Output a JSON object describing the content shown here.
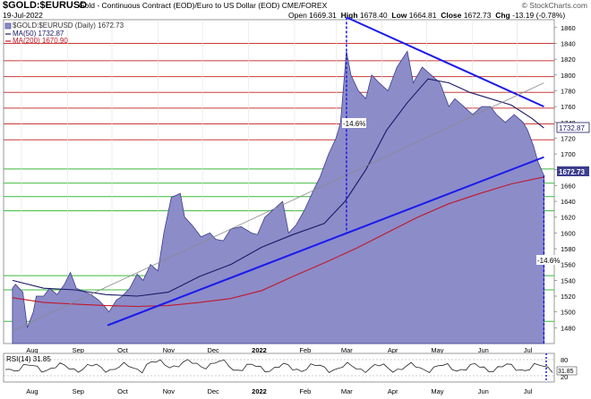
{
  "header": {
    "symbol": "$GOLD:$EURUSD",
    "description": "Gold - Continuous Contract (EOD)/Euro to US Dollar (EOD)  CME/FOREX",
    "watermark": "© StockCharts.com",
    "date": "19-Jul-2022",
    "open_label": "Open",
    "open": "1669.31",
    "high_label": "High",
    "high": "1678.40",
    "low_label": "Low",
    "low": "1664.81",
    "close_label": "Close",
    "close": "1672.73",
    "chg_label": "Chg",
    "chg": "-13.19 (-0.78%)"
  },
  "legend": {
    "price": "$GOLD:$EURUSD (Daily) 1672.73",
    "ma50": "MA(50) 1732.87",
    "ma200": "MA(200) 1670.90"
  },
  "rsi": {
    "label": "RSI(14) 31.85",
    "ticks": [
      "80",
      "20"
    ],
    "value_tag": "31.85"
  },
  "annotations": {
    "left_pct": "-14.6%",
    "right_pct": "-14.6%"
  },
  "price_tags": {
    "ma50": "1732.87",
    "close": "1672.73"
  },
  "colors": {
    "area_fill": "#8c8cc9",
    "area_line": "#3d3d8f",
    "ma50": "#1a1a66",
    "ma200": "#c0182a",
    "trend": "#1a1aee",
    "grid_red": "#c83b3b",
    "grid_green": "#3cb83c"
  },
  "chart_data": {
    "type": "area",
    "ylim": [
      1460,
      1870
    ],
    "y_ticks": [
      1480,
      1500,
      1520,
      1540,
      1560,
      1580,
      1600,
      1620,
      1640,
      1660,
      1680,
      1700,
      1720,
      1740,
      1760,
      1780,
      1800,
      1820,
      1840,
      1860
    ],
    "x_labels": [
      "Aug",
      "Sep",
      "Oct",
      "Nov",
      "Dec",
      "2022",
      "Feb",
      "Mar",
      "Apr",
      "May",
      "Jun",
      "Jul"
    ],
    "series": [
      {
        "name": "$GOLD:$EURUSD (Daily)",
        "x": [
          "2021-07-26",
          "2021-07-28",
          "2021-08-02",
          "2021-08-05",
          "2021-08-09",
          "2021-08-11",
          "2021-08-16",
          "2021-08-20",
          "2021-08-25",
          "2021-08-30",
          "2021-09-03",
          "2021-09-07",
          "2021-09-13",
          "2021-09-17",
          "2021-09-22",
          "2021-09-27",
          "2021-09-29",
          "2021-10-04",
          "2021-10-08",
          "2021-10-13",
          "2021-10-18",
          "2021-10-22",
          "2021-10-27",
          "2021-11-01",
          "2021-11-05",
          "2021-11-10",
          "2021-11-16",
          "2021-11-19",
          "2021-11-24",
          "2021-11-30",
          "2021-12-06",
          "2021-12-10",
          "2021-12-15",
          "2021-12-20",
          "2021-12-27",
          "2022-01-03",
          "2022-01-07",
          "2022-01-12",
          "2022-01-18",
          "2022-01-24",
          "2022-01-28",
          "2022-02-02",
          "2022-02-08",
          "2022-02-14",
          "2022-02-18",
          "2022-02-24",
          "2022-03-01",
          "2022-03-04",
          "2022-03-08",
          "2022-03-11",
          "2022-03-16",
          "2022-03-21",
          "2022-03-25",
          "2022-03-30",
          "2022-04-05",
          "2022-04-11",
          "2022-04-18",
          "2022-04-22",
          "2022-04-28",
          "2022-05-04",
          "2022-05-10",
          "2022-05-16",
          "2022-05-20",
          "2022-05-26",
          "2022-06-01",
          "2022-06-07",
          "2022-06-13",
          "2022-06-17",
          "2022-06-23",
          "2022-06-29",
          "2022-07-05",
          "2022-07-08",
          "2022-07-12",
          "2022-07-15",
          "2022-07-19"
        ],
        "values": [
          1530,
          1535,
          1525,
          1480,
          1500,
          1520,
          1520,
          1530,
          1522,
          1535,
          1550,
          1530,
          1525,
          1522,
          1515,
          1505,
          1500,
          1515,
          1520,
          1530,
          1548,
          1540,
          1560,
          1552,
          1600,
          1645,
          1650,
          1620,
          1610,
          1595,
          1600,
          1592,
          1590,
          1605,
          1608,
          1600,
          1598,
          1620,
          1630,
          1640,
          1600,
          1610,
          1630,
          1655,
          1670,
          1700,
          1720,
          1740,
          1830,
          1800,
          1780,
          1770,
          1800,
          1790,
          1780,
          1810,
          1830,
          1790,
          1810,
          1800,
          1790,
          1760,
          1770,
          1760,
          1750,
          1760,
          1760,
          1750,
          1740,
          1750,
          1740,
          1730,
          1710,
          1690,
          1672.73
        ]
      },
      {
        "name": "MA(50)",
        "x": [
          "2021-07-26",
          "2021-08-16",
          "2021-09-06",
          "2021-09-27",
          "2021-10-18",
          "2021-11-08",
          "2021-11-29",
          "2021-12-20",
          "2022-01-10",
          "2022-01-31",
          "2022-02-21",
          "2022-03-07",
          "2022-03-21",
          "2022-04-04",
          "2022-04-18",
          "2022-05-02",
          "2022-05-16",
          "2022-05-30",
          "2022-06-13",
          "2022-06-27",
          "2022-07-11",
          "2022-07-19"
        ],
        "values": [
          1540,
          1530,
          1528,
          1522,
          1520,
          1525,
          1545,
          1560,
          1582,
          1598,
          1612,
          1640,
          1680,
          1730,
          1765,
          1795,
          1790,
          1778,
          1770,
          1762,
          1745,
          1732.87
        ]
      },
      {
        "name": "MA(200)",
        "x": [
          "2021-07-26",
          "2021-08-16",
          "2021-09-06",
          "2021-09-27",
          "2021-10-18",
          "2021-11-08",
          "2021-11-29",
          "2021-12-20",
          "2022-01-10",
          "2022-01-31",
          "2022-02-21",
          "2022-03-14",
          "2022-04-04",
          "2022-04-25",
          "2022-05-16",
          "2022-06-06",
          "2022-06-27",
          "2022-07-19"
        ],
        "values": [
          1518,
          1512,
          1510,
          1508,
          1507,
          1508,
          1512,
          1517,
          1527,
          1545,
          1562,
          1580,
          1600,
          1620,
          1637,
          1650,
          1662,
          1670.9
        ]
      }
    ],
    "trendlines": [
      {
        "from": [
          "2021-09-28",
          1483
        ],
        "to": [
          "2022-07-19",
          1696
        ]
      },
      {
        "from": [
          "2022-03-08",
          1873
        ],
        "to": [
          "2022-07-19",
          1760
        ]
      },
      {
        "from": [
          "2021-07-26",
          1476
        ],
        "to": [
          "2022-07-19",
          1790
        ]
      }
    ],
    "horizontal_lines": [
      {
        "value": 1840,
        "color": "red"
      },
      {
        "value": 1818,
        "color": "red"
      },
      {
        "value": 1798,
        "color": "red"
      },
      {
        "value": 1778,
        "color": "red"
      },
      {
        "value": 1758,
        "color": "red"
      },
      {
        "value": 1738,
        "color": "red"
      },
      {
        "value": 1718,
        "color": "red"
      },
      {
        "value": 1681,
        "color": "green"
      },
      {
        "value": 1663,
        "color": "green"
      },
      {
        "value": 1646,
        "color": "green"
      },
      {
        "value": 1628,
        "color": "green"
      },
      {
        "value": 1546,
        "color": "green"
      },
      {
        "value": 1528,
        "color": "green"
      },
      {
        "value": 1488,
        "color": "green"
      }
    ],
    "vertical_markers": [
      {
        "x": "2022-03-08",
        "from": 1873,
        "to": 1600
      },
      {
        "x": "2022-07-19",
        "from": 1672.73,
        "to": 1460
      }
    ]
  }
}
